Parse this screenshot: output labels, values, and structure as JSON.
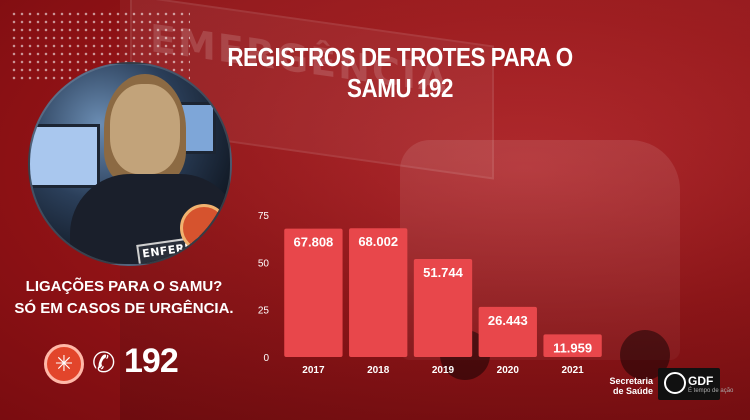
{
  "headline": "REGISTROS DE TROTES PARA O SAMU 192",
  "background_sign": "EMERGÊNCIA",
  "photo_badge": "ENFERMEIRA",
  "side_message": {
    "line1": "LIGAÇÕES PARA O SAMU?",
    "line2": "SÓ EM CASOS DE URGÊNCIA."
  },
  "phone_number": "192",
  "footer": {
    "secretaria": "Secretaria de Saúde",
    "gdf": "GDF",
    "gdf_tagline": "É tempo de ação"
  },
  "colors": {
    "bar": "#e8474b",
    "bar_highlight": "#f06468",
    "axis_text": "#ffffff",
    "background": "#9a1518"
  },
  "icons": {
    "samu_logo": "samu-star-of-life-icon",
    "phone": "phone-ringing-icon",
    "gdf_logo": "gdf-logo-icon"
  },
  "chart_data": {
    "type": "bar",
    "title": "REGISTROS DE TROTES PARA O SAMU 192",
    "categories": [
      "2017",
      "2018",
      "2019",
      "2020",
      "2021"
    ],
    "values": [
      67808,
      68002,
      51744,
      26443,
      11959
    ],
    "value_labels": [
      "67.808",
      "68.002",
      "51.744",
      "26.443",
      "11.959"
    ],
    "y_ticks": [
      "0",
      "25",
      "50",
      "75"
    ],
    "y_tick_values": [
      0,
      25000,
      50000,
      75000
    ],
    "ylim": [
      0,
      75000
    ],
    "xlabel": "",
    "ylabel": "",
    "grid": false,
    "legend": "none"
  }
}
